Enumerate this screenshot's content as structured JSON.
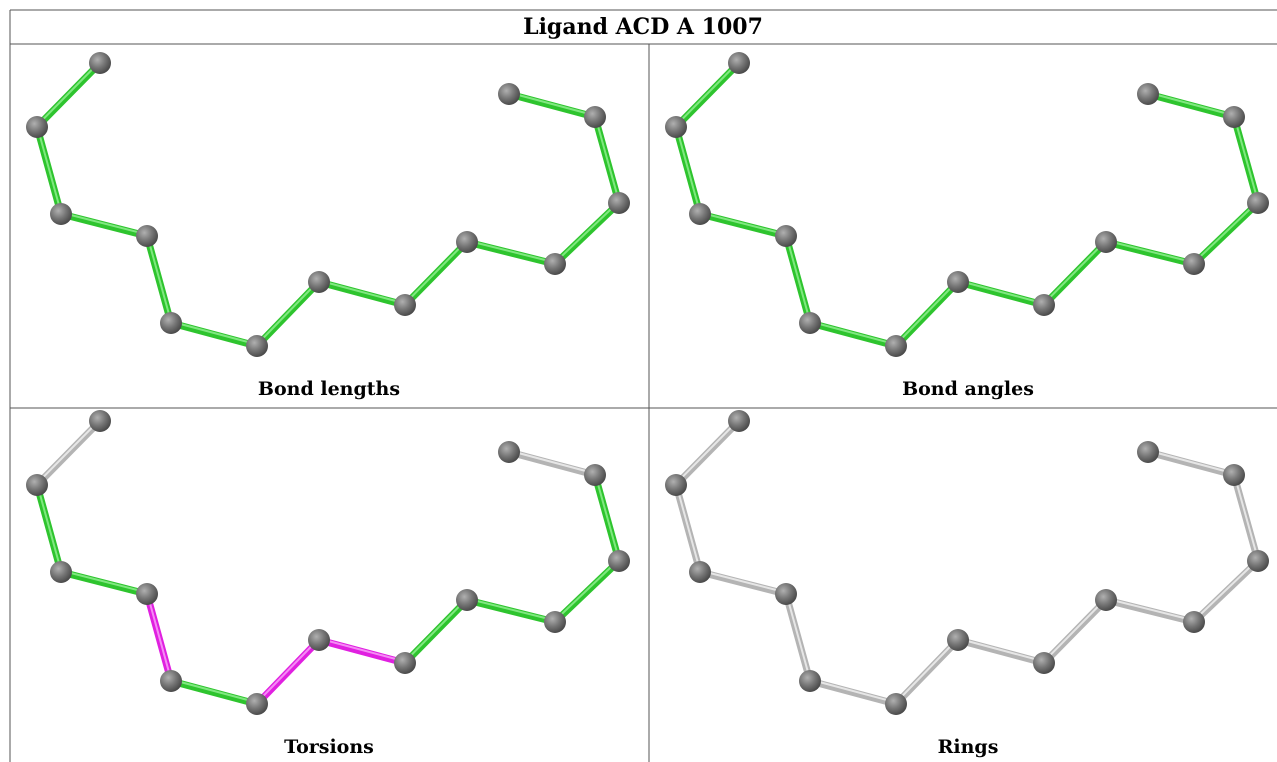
{
  "title": "Ligand ACD A 1007",
  "panels": [
    {
      "caption": "Bond lengths"
    },
    {
      "caption": "Bond angles"
    },
    {
      "caption": "Torsions"
    },
    {
      "caption": "Rings"
    }
  ]
}
